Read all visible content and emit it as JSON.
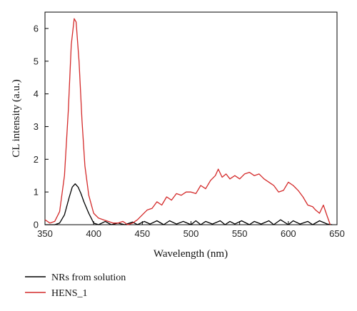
{
  "chart_data": {
    "type": "line",
    "xlabel": "Wavelength (nm)",
    "ylabel": "CL intensity (a.u.)",
    "xlim": [
      350,
      650
    ],
    "ylim": [
      0,
      6.5
    ],
    "xticks": [
      350,
      400,
      450,
      500,
      550,
      600,
      650
    ],
    "yticks": [
      0,
      1,
      2,
      3,
      4,
      5,
      6
    ],
    "grid": false,
    "legend_position": "bottom-left, below plot",
    "series": [
      {
        "name": "NRs from solution",
        "color": "#000000",
        "x": [
          350,
          360,
          365,
          370,
          375,
          378,
          381,
          384,
          387,
          390,
          395,
          400,
          405,
          412,
          418,
          425,
          432,
          440,
          445,
          452,
          458,
          465,
          472,
          478,
          485,
          492,
          500,
          505,
          510,
          515,
          522,
          530,
          535,
          540,
          545,
          552,
          560,
          565,
          572,
          580,
          585,
          592,
          600,
          605,
          612,
          620,
          625,
          632,
          640,
          645
        ],
        "y": [
          0.0,
          0.0,
          0.05,
          0.3,
          0.85,
          1.15,
          1.25,
          1.15,
          0.95,
          0.7,
          0.35,
          0.05,
          0.0,
          0.1,
          0.0,
          0.05,
          0.0,
          0.08,
          0.0,
          0.1,
          0.02,
          0.12,
          0.0,
          0.12,
          0.02,
          0.1,
          0.0,
          0.12,
          0.0,
          0.1,
          0.02,
          0.12,
          0.0,
          0.1,
          0.02,
          0.12,
          0.0,
          0.1,
          0.02,
          0.12,
          0.0,
          0.15,
          0.0,
          0.12,
          0.02,
          0.1,
          0.0,
          0.12,
          0.02,
          0.0
        ]
      },
      {
        "name": "HENS_1",
        "color": "#d42a2a",
        "x": [
          350,
          355,
          360,
          365,
          370,
          374,
          377,
          380,
          382,
          385,
          388,
          391,
          395,
          400,
          405,
          410,
          415,
          420,
          425,
          430,
          435,
          440,
          445,
          450,
          455,
          460,
          465,
          470,
          475,
          480,
          485,
          490,
          495,
          500,
          505,
          510,
          515,
          520,
          525,
          528,
          532,
          536,
          540,
          545,
          550,
          555,
          560,
          565,
          570,
          575,
          580,
          585,
          590,
          595,
          600,
          605,
          610,
          615,
          620,
          625,
          628,
          632,
          636,
          640,
          643
        ],
        "y": [
          0.15,
          0.05,
          0.1,
          0.4,
          1.5,
          3.5,
          5.5,
          6.3,
          6.2,
          5.0,
          3.2,
          1.8,
          0.9,
          0.35,
          0.2,
          0.15,
          0.1,
          0.05,
          0.05,
          0.1,
          0.0,
          0.05,
          0.15,
          0.3,
          0.45,
          0.5,
          0.7,
          0.6,
          0.85,
          0.75,
          0.95,
          0.9,
          1.0,
          1.0,
          0.95,
          1.2,
          1.1,
          1.35,
          1.5,
          1.7,
          1.45,
          1.55,
          1.4,
          1.5,
          1.4,
          1.55,
          1.6,
          1.5,
          1.55,
          1.4,
          1.3,
          1.2,
          1.0,
          1.05,
          1.3,
          1.2,
          1.05,
          0.85,
          0.6,
          0.55,
          0.45,
          0.35,
          0.6,
          0.25,
          0.0
        ]
      }
    ]
  }
}
